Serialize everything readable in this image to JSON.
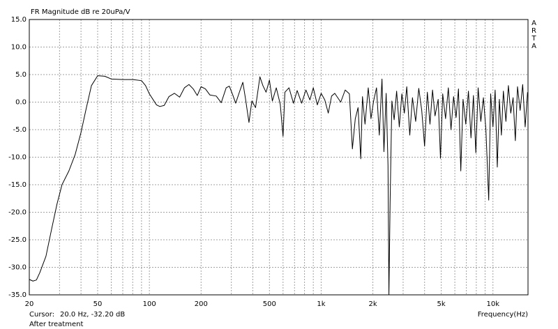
{
  "chart_data": {
    "type": "line",
    "title": "FR Magnitude dB re 20uPa/V",
    "brand": "ARTA",
    "x_label": "Frequency(Hz)",
    "cursor_label": "Cursor:",
    "cursor_value": "20.0 Hz, -32.20 dB",
    "series_label": "After treatment",
    "color": "#000000",
    "log_x": true,
    "grid": true,
    "xlim": [
      20,
      16000
    ],
    "ylim": [
      -35,
      15
    ],
    "xticks": [
      20,
      50,
      100,
      200,
      500,
      {
        "value": 1000,
        "label": "1k"
      },
      {
        "value": 2000,
        "label": "2k"
      },
      {
        "value": 5000,
        "label": "5k"
      },
      {
        "value": 10000,
        "label": "10k"
      }
    ],
    "xminor_ticks": [
      30,
      40,
      60,
      70,
      80,
      90,
      300,
      400,
      600,
      700,
      800,
      900,
      3000,
      4000,
      6000,
      7000,
      8000,
      9000
    ],
    "yticks": [
      {
        "value": 15,
        "label": "15.0"
      },
      {
        "value": 10,
        "label": "10.0"
      },
      {
        "value": 5,
        "label": "5.0"
      },
      {
        "value": 0,
        "label": "0.0"
      },
      {
        "value": -5,
        "label": "-5.0"
      },
      {
        "value": -10,
        "label": "-10.0"
      },
      {
        "value": -15,
        "label": "-15.0"
      },
      {
        "value": -20,
        "label": "-20.0"
      },
      {
        "value": -25,
        "label": "-25.0"
      },
      {
        "value": -30,
        "label": "-30.0"
      },
      {
        "value": -35,
        "label": "-35.0"
      }
    ],
    "x": [
      20,
      21,
      22,
      23,
      25,
      27,
      29,
      31,
      34,
      37,
      40,
      43,
      46,
      50,
      55,
      60,
      70,
      80,
      90,
      95,
      100,
      110,
      115,
      122,
      130,
      140,
      150,
      160,
      170,
      180,
      190,
      200,
      212,
      225,
      245,
      262,
      280,
      292,
      305,
      318,
      335,
      350,
      362,
      380,
      395,
      415,
      440,
      458,
      478,
      500,
      520,
      548,
      578,
      600,
      615,
      650,
      690,
      725,
      770,
      815,
      860,
      900,
      950,
      1000,
      1050,
      1100,
      1150,
      1200,
      1300,
      1380,
      1460,
      1520,
      1580,
      1640,
      1700,
      1740,
      1800,
      1880,
      1950,
      2020,
      2100,
      2180,
      2260,
      2320,
      2390,
      2450,
      2480,
      2520,
      2580,
      2660,
      2750,
      2850,
      2950,
      3050,
      3150,
      3280,
      3400,
      3550,
      3700,
      3850,
      4000,
      4150,
      4300,
      4450,
      4600,
      4800,
      4950,
      5100,
      5300,
      5500,
      5700,
      5900,
      6100,
      6300,
      6500,
      6700,
      6950,
      7200,
      7450,
      7700,
      7950,
      8200,
      8500,
      8800,
      9100,
      9450,
      9700,
      10000,
      10300,
      10600,
      10900,
      11200,
      11500,
      11900,
      12300,
      12700,
      13100,
      13500,
      13900,
      14400,
      14900,
      15400,
      15900
    ],
    "values": [
      -32.2,
      -32.5,
      -32.3,
      -31,
      -28,
      -23,
      -18.5,
      -15,
      -12.5,
      -9.5,
      -5.5,
      -1,
      3,
      4.8,
      4.7,
      4.2,
      4.1,
      4.1,
      3.9,
      3,
      1.5,
      -0.5,
      -0.8,
      -0.6,
      1,
      1.6,
      0.9,
      2.6,
      3.2,
      2.4,
      1.2,
      2.8,
      2.4,
      1.3,
      1.1,
      -0.1,
      2.6,
      2.9,
      1.4,
      -0.2,
      1.9,
      3.6,
      0.8,
      -3.7,
      0.2,
      -1,
      4.6,
      3,
      1.8,
      4,
      0.2,
      2.6,
      -0.4,
      -6.2,
      1.8,
      2.6,
      -0.2,
      2.1,
      -0.2,
      2.2,
      0.4,
      2.6,
      -0.5,
      1.6,
      0.4,
      -2,
      1.1,
      1.6,
      0,
      2.2,
      1.5,
      -8.5,
      -3,
      -1,
      -10.3,
      1,
      -4,
      2.6,
      -3,
      0.2,
      2.6,
      -6,
      4.2,
      -9,
      1.6,
      -11.5,
      -35,
      -18.2,
      0.2,
      -3.2,
      2,
      -4.5,
      1.5,
      -2,
      2.8,
      -6,
      0.8,
      -3.5,
      2.5,
      -1.5,
      -8,
      1.8,
      -4,
      2.2,
      -2.5,
      0.5,
      -10.2,
      1.5,
      -3,
      2.6,
      -5,
      1,
      -2.8,
      2.4,
      -12.5,
      0.5,
      -4,
      2,
      -6.5,
      1.2,
      -9.2,
      2.6,
      -3.5,
      0.8,
      -5,
      -17.8,
      1.5,
      -4.5,
      2.2,
      -11.8,
      0.5,
      -6,
      2,
      -3.5,
      3,
      -2,
      0.8,
      -7,
      2.8,
      -1.5,
      3.2,
      -4.5,
      1.8
    ]
  }
}
